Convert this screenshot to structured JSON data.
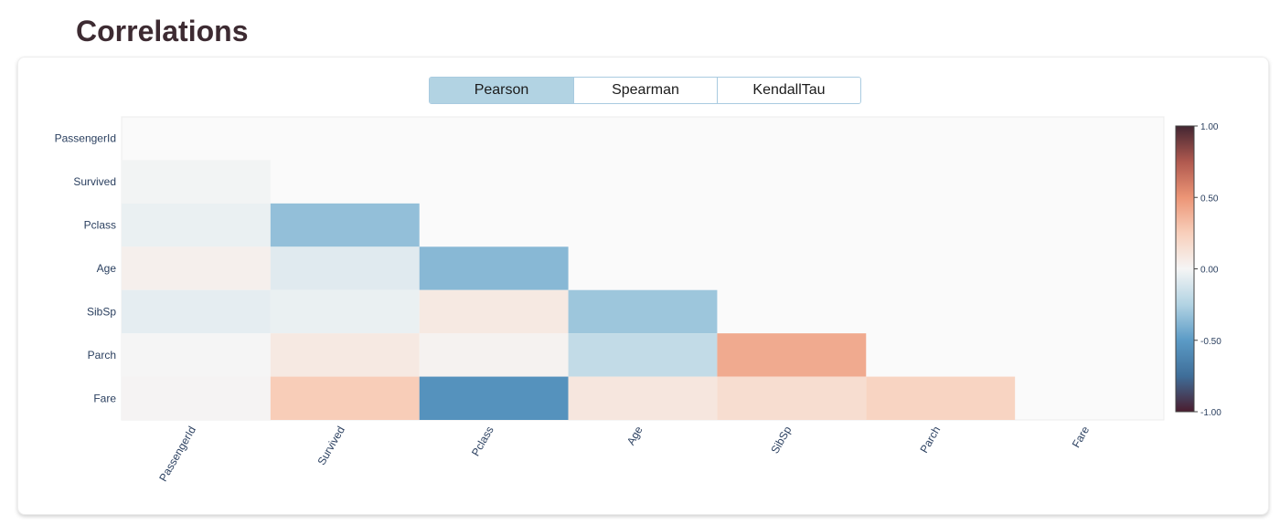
{
  "page": {
    "title": "Correlations"
  },
  "tabs": [
    {
      "label": "Pearson",
      "active": true
    },
    {
      "label": "Spearman",
      "active": false
    },
    {
      "label": "KendallTau",
      "active": false
    }
  ],
  "chart_data": {
    "type": "heatmap",
    "title": "",
    "variables": [
      "PassengerId",
      "Survived",
      "Pclass",
      "Age",
      "SibSp",
      "Parch",
      "Fare"
    ],
    "lower_triangle_only": true,
    "matrix": [
      [
        null,
        null,
        null,
        null,
        null,
        null,
        null
      ],
      [
        -0.01,
        null,
        null,
        null,
        null,
        null,
        null
      ],
      [
        -0.04,
        -0.34,
        null,
        null,
        null,
        null,
        null
      ],
      [
        0.04,
        -0.08,
        -0.37,
        null,
        null,
        null,
        null
      ],
      [
        -0.06,
        -0.04,
        0.08,
        -0.31,
        null,
        null,
        null
      ],
      [
        -0.0,
        0.08,
        0.02,
        -0.19,
        0.41,
        null,
        null
      ],
      [
        0.01,
        0.26,
        -0.55,
        0.1,
        0.16,
        0.22,
        null
      ]
    ],
    "colorscale": {
      "range": [
        -1,
        1
      ],
      "ticks": [
        "1.00",
        "0.50",
        "0.00",
        "-0.50",
        "-1.00"
      ],
      "stops": [
        {
          "value": -1.0,
          "color": "#4a1d2e"
        },
        {
          "value": -0.75,
          "color": "#3f6e99"
        },
        {
          "value": -0.5,
          "color": "#5b9bc6"
        },
        {
          "value": -0.25,
          "color": "#b2d3e3"
        },
        {
          "value": 0.0,
          "color": "#f5f5f5"
        },
        {
          "value": 0.25,
          "color": "#f8cfbb"
        },
        {
          "value": 0.5,
          "color": "#ec9576"
        },
        {
          "value": 0.75,
          "color": "#b0594f"
        },
        {
          "value": 1.0,
          "color": "#432632"
        }
      ]
    },
    "grid": false,
    "colorbar_position": "right"
  }
}
